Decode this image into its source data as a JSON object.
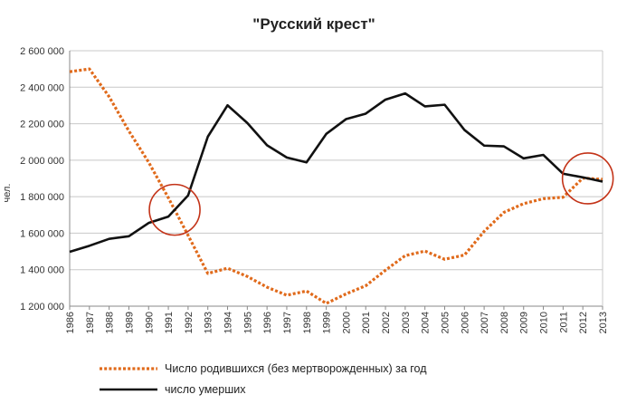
{
  "chart_data": {
    "type": "line",
    "title": "\"Русский крест\"",
    "ylabel": "чел.",
    "xlabel": "",
    "ylim": [
      1200000,
      2600000
    ],
    "yticks": [
      1200000,
      1400000,
      1600000,
      1800000,
      2000000,
      2200000,
      2400000,
      2600000
    ],
    "ytick_labels": [
      "1 200 000",
      "1 400 000",
      "1 600 000",
      "1 800 000",
      "2 000 000",
      "2 200 000",
      "2 400 000",
      "2 600 000"
    ],
    "x": [
      "1986",
      "1987",
      "1988",
      "1989",
      "1990",
      "1991",
      "1992",
      "1993",
      "1994",
      "1995",
      "1996",
      "1997",
      "1998",
      "1999",
      "2000",
      "2001",
      "2002",
      "2003",
      "2004",
      "2005",
      "2006",
      "2007",
      "2008",
      "2009",
      "2010",
      "2011",
      "2012",
      "2013"
    ],
    "grid": "horizontal",
    "legend_position": "bottom",
    "series": [
      {
        "name": "Число родившихся (без мертворожденных) за год",
        "style": "dotted",
        "color": "#e06a1b",
        "values": [
          2485000,
          2500000,
          2348000,
          2160000,
          1989000,
          1794000,
          1588000,
          1379000,
          1408000,
          1363000,
          1304000,
          1260000,
          1283000,
          1215000,
          1267000,
          1312000,
          1397000,
          1477000,
          1502000,
          1457000,
          1480000,
          1610000,
          1714000,
          1762000,
          1789000,
          1797000,
          1902000,
          1895000
        ]
      },
      {
        "name": "число умерших",
        "style": "solid",
        "color": "#111111",
        "values": [
          1498000,
          1531000,
          1569000,
          1583000,
          1656000,
          1691000,
          1807000,
          2129000,
          2301000,
          2204000,
          2082000,
          2015000,
          1988000,
          2144000,
          2225000,
          2255000,
          2332000,
          2366000,
          2295000,
          2304000,
          2166000,
          2080000,
          2076000,
          2010000,
          2029000,
          1926000,
          1906000,
          1883000
        ]
      }
    ]
  },
  "colors": {
    "circle": "#c33318",
    "grid": "#c8c8c8",
    "axis": "#888888"
  }
}
